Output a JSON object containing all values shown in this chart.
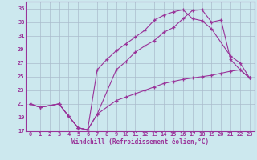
{
  "xlabel": "Windchill (Refroidissement éolien,°C)",
  "bg_color": "#cce8ee",
  "grid_color": "#aabccc",
  "line_color": "#993399",
  "xlim": [
    -0.5,
    23.5
  ],
  "ylim": [
    17,
    36
  ],
  "yticks": [
    17,
    19,
    21,
    23,
    25,
    27,
    29,
    31,
    33,
    35
  ],
  "xticks": [
    0,
    1,
    2,
    3,
    4,
    5,
    6,
    7,
    8,
    9,
    10,
    11,
    12,
    13,
    14,
    15,
    16,
    17,
    18,
    19,
    20,
    21,
    22,
    23
  ],
  "line1_x": [
    0,
    1,
    3,
    4,
    5,
    6,
    7,
    9,
    10,
    11,
    12,
    13,
    14,
    15,
    16,
    17,
    18,
    19,
    20,
    21,
    22,
    23
  ],
  "line1_y": [
    21.0,
    20.5,
    21.0,
    19.2,
    17.5,
    17.2,
    19.5,
    26.0,
    27.2,
    28.6,
    29.5,
    30.3,
    31.5,
    32.2,
    33.5,
    34.7,
    34.8,
    33.0,
    33.3,
    27.5,
    26.0,
    24.8
  ],
  "line2_x": [
    0,
    1,
    3,
    4,
    5,
    6,
    7,
    8,
    9,
    10,
    11,
    12,
    13,
    14,
    15,
    16,
    17,
    18,
    19,
    21,
    22,
    23
  ],
  "line2_y": [
    21.0,
    20.5,
    21.0,
    19.2,
    17.5,
    17.2,
    26.0,
    27.5,
    28.8,
    29.8,
    30.8,
    31.8,
    33.3,
    34.0,
    34.5,
    34.8,
    33.5,
    33.2,
    32.0,
    28.0,
    27.0,
    24.8
  ],
  "line3_x": [
    0,
    1,
    3,
    4,
    5,
    6,
    7,
    9,
    10,
    11,
    12,
    13,
    14,
    15,
    16,
    17,
    18,
    19,
    20,
    21,
    22,
    23
  ],
  "line3_y": [
    21.0,
    20.5,
    21.0,
    19.2,
    17.5,
    17.2,
    19.5,
    21.5,
    22.0,
    22.5,
    23.0,
    23.5,
    24.0,
    24.3,
    24.6,
    24.8,
    25.0,
    25.2,
    25.5,
    25.8,
    26.0,
    24.8
  ]
}
